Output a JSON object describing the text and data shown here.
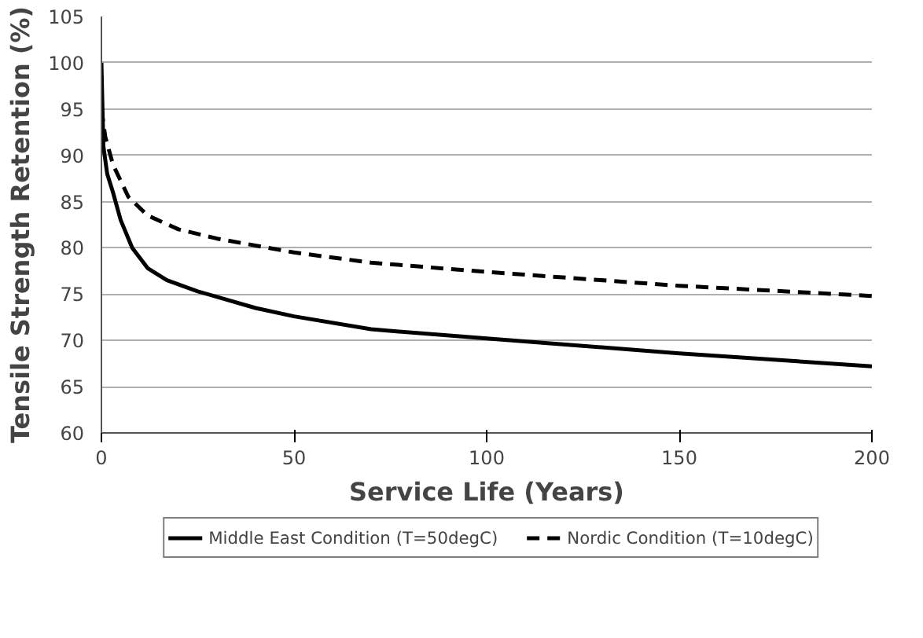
{
  "chart_data": {
    "type": "line",
    "xlabel": "Service Life (Years)",
    "ylabel": "Tensile Strength Retention (%)",
    "xlim": [
      0,
      200
    ],
    "xticks": [
      0,
      50,
      100,
      150,
      200
    ],
    "ylim": [
      60,
      105
    ],
    "yticks": [
      60,
      65,
      70,
      75,
      80,
      85,
      90,
      95,
      100,
      105
    ],
    "grid": "y",
    "legend": "bottom",
    "marker": "none",
    "series": [
      {
        "name": "Middle East Condition (T=50degC)",
        "color": "#000000",
        "line_style": "solid",
        "x": [
          0,
          0.5,
          1.5,
          3,
          5,
          8,
          12,
          17,
          25,
          40,
          50,
          70,
          100,
          150,
          200
        ],
        "values": [
          100,
          91,
          88,
          86,
          83,
          80,
          77.8,
          76.5,
          75.3,
          73.5,
          72.6,
          71.2,
          70.2,
          68.6,
          67.2
        ]
      },
      {
        "name": "Nordic Condition (T=10degC)",
        "color": "#000000",
        "line_style": "dashed",
        "x": [
          0,
          1,
          3,
          7,
          12,
          20,
          30,
          50,
          70,
          100,
          150,
          200
        ],
        "values": [
          95,
          92,
          89,
          85.5,
          83.5,
          82,
          81,
          79.5,
          78.4,
          77.4,
          75.9,
          74.8
        ]
      }
    ]
  }
}
